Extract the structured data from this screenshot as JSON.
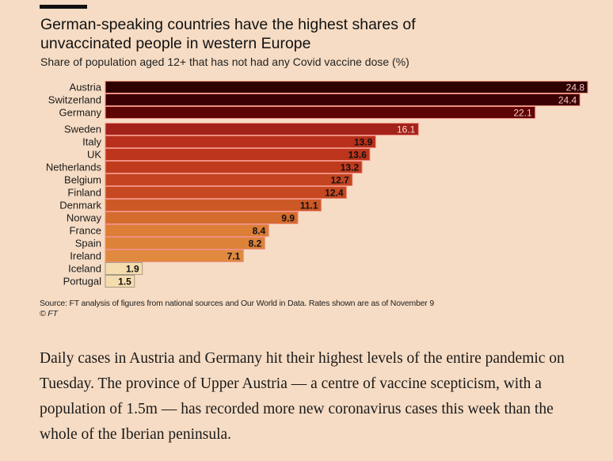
{
  "chart_data": {
    "type": "bar",
    "orientation": "horizontal",
    "title": "German-speaking countries have the highest shares of unvaccinated people in western Europe",
    "subtitle": "Share of population aged 12+ that has not had any Covid vaccine dose (%)",
    "categories": [
      "Austria",
      "Switzerland",
      "Germany",
      "Sweden",
      "Italy",
      "UK",
      "Netherlands",
      "Belgium",
      "Finland",
      "Denmark",
      "Norway",
      "France",
      "Spain",
      "Ireland",
      "Iceland",
      "Portugal"
    ],
    "values": [
      24.8,
      24.4,
      22.1,
      16.1,
      13.9,
      13.6,
      13.2,
      12.7,
      12.4,
      11.1,
      9.9,
      8.4,
      8.2,
      7.1,
      1.9,
      1.5
    ],
    "labels": [
      "24.8",
      "24.4",
      "22.1",
      "16.1",
      "13.9",
      "13.6",
      "13.2",
      "12.7",
      "12.4",
      "11.1",
      "9.9",
      "8.4",
      "8.2",
      "7.1",
      "1.9",
      "1.5"
    ],
    "colors": [
      "#2e0002",
      "#3a0003",
      "#5e0506",
      "#a3221a",
      "#b8301b",
      "#bc351c",
      "#c03b1e",
      "#c44421",
      "#c64822",
      "#cc5826",
      "#d46c2d",
      "#dc7e36",
      "#dd8239",
      "#df8a3f",
      "#f4dcae",
      "#f4dcae"
    ],
    "label_colors": [
      "#f6c9c0",
      "#f6c9c0",
      "#f6c9c0",
      "#f8dcd0",
      "#111",
      "#111",
      "#111",
      "#111",
      "#111",
      "#111",
      "#111",
      "#111",
      "#111",
      "#111",
      "#111",
      "#111"
    ],
    "xlim": [
      0,
      24.8
    ],
    "grid": false,
    "legend": "none"
  },
  "title": "German-speaking countries have the highest shares of unvaccinated people in western Europe",
  "subtitle": "Share of population aged 12+ that has not had any Covid vaccine dose (%)",
  "source": "Source: FT analysis of figures from national sources and Our World in Data. Rates shown are as of November 9",
  "copyright": "© FT",
  "body_text": "Daily cases in Austria and Germany hit their highest levels of the entire pandemic on Tuesday. The province of Upper Austria — a centre of vaccine scepticism, with a population of 1.5m — has recorded more new coronavirus cases this week than the whole of the Iberian peninsula."
}
